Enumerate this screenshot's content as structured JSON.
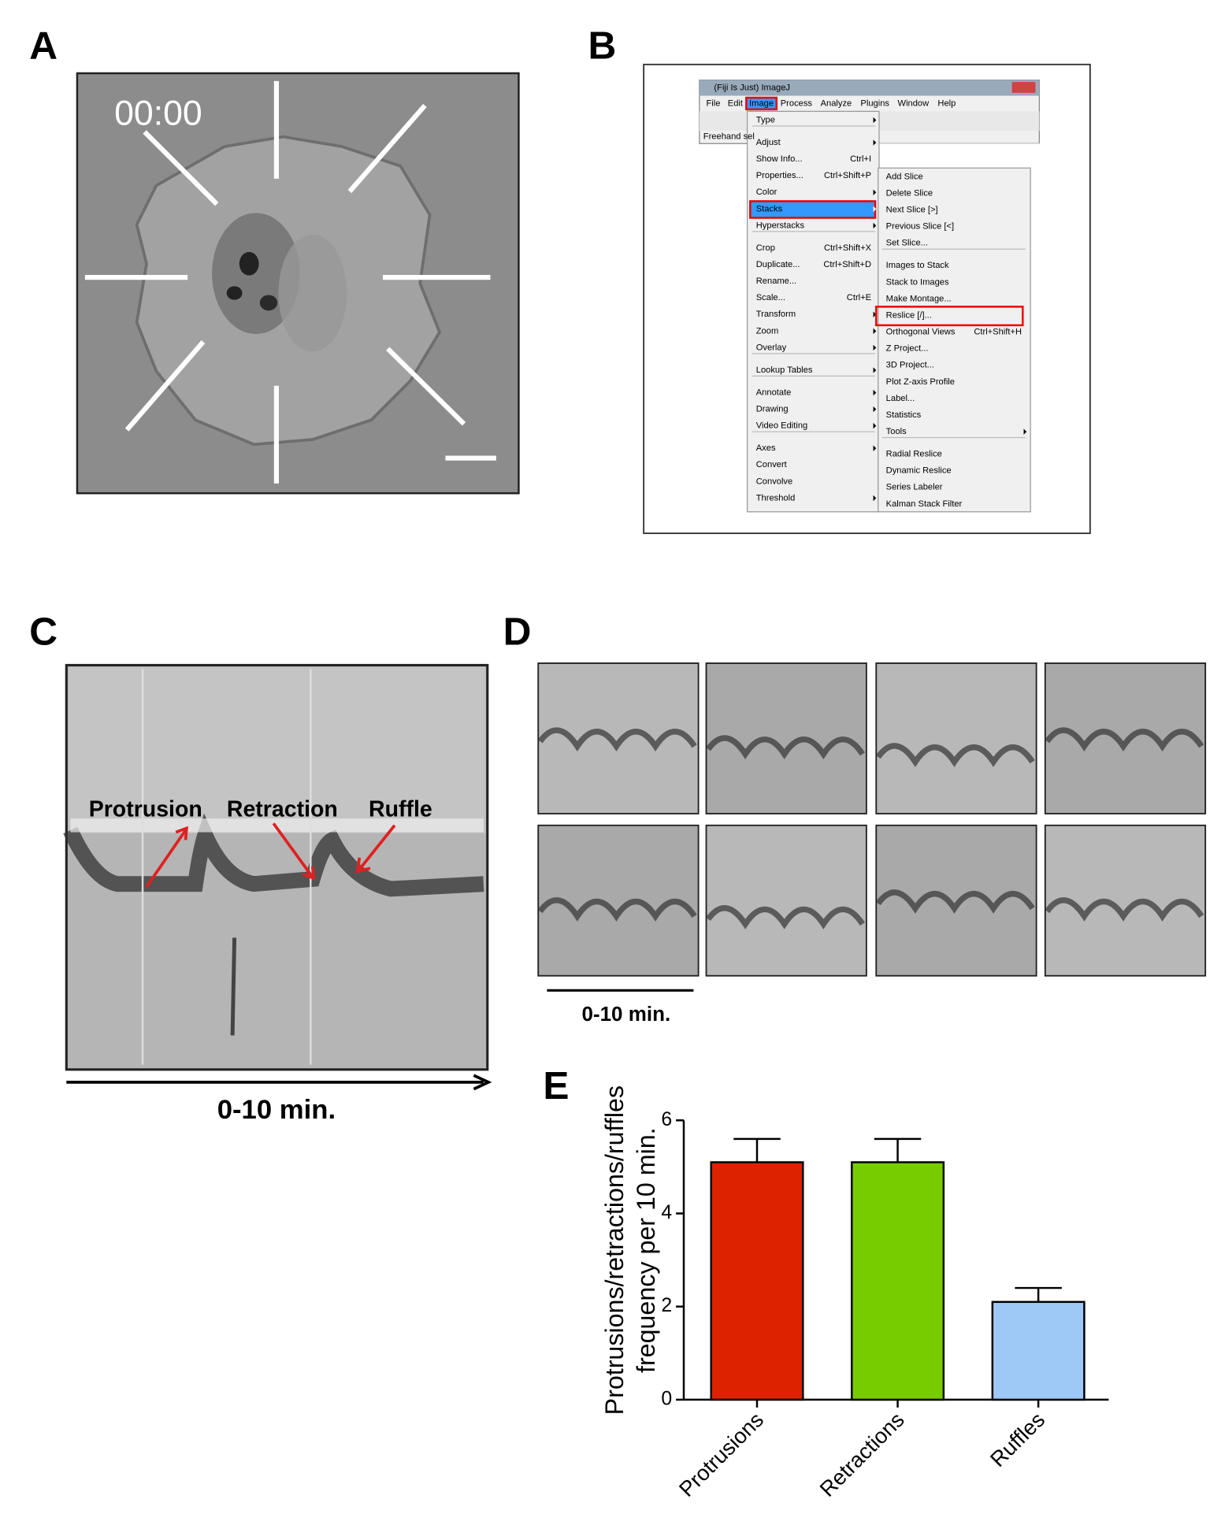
{
  "panel_labels": [
    "A",
    "B",
    "C",
    "D",
    "E"
  ],
  "panel_a": {
    "timestamp": "00:00"
  },
  "panel_b": {
    "window_title": "(Fiji Is Just) ImageJ",
    "menu_bar": [
      "File",
      "Edit",
      "Image",
      "Process",
      "Analyze",
      "Plugins",
      "Window",
      "Help"
    ],
    "status": "Freehand sel",
    "image_menu": [
      [
        {
          "label": "Type",
          "submenu": true
        }
      ],
      [
        {
          "label": "Adjust",
          "submenu": true
        },
        {
          "label": "Show Info...",
          "shortcut": "Ctrl+I"
        },
        {
          "label": "Properties...",
          "shortcut": "Ctrl+Shift+P"
        },
        {
          "label": "Color",
          "submenu": true
        },
        {
          "label": "Stacks",
          "submenu": true
        },
        {
          "label": "Hyperstacks",
          "submenu": true
        }
      ],
      [
        {
          "label": "Crop",
          "shortcut": "Ctrl+Shift+X"
        },
        {
          "label": "Duplicate...",
          "shortcut": "Ctrl+Shift+D"
        },
        {
          "label": "Rename..."
        },
        {
          "label": "Scale...",
          "shortcut": "Ctrl+E"
        },
        {
          "label": "Transform",
          "submenu": true
        },
        {
          "label": "Zoom",
          "submenu": true
        },
        {
          "label": "Overlay",
          "submenu": true
        }
      ],
      [
        {
          "label": "Lookup Tables",
          "submenu": true
        }
      ],
      [
        {
          "label": "Annotate",
          "submenu": true
        },
        {
          "label": "Drawing",
          "submenu": true
        },
        {
          "label": "Video Editing",
          "submenu": true
        }
      ],
      [
        {
          "label": "Axes",
          "submenu": true
        },
        {
          "label": "Convert"
        },
        {
          "label": "Convolve"
        },
        {
          "label": "Threshold",
          "submenu": true
        }
      ]
    ],
    "stacks_menu": [
      [
        {
          "label": "Add Slice"
        },
        {
          "label": "Delete Slice"
        },
        {
          "label": "Next Slice [>]"
        },
        {
          "label": "Previous Slice [<]"
        },
        {
          "label": "Set Slice..."
        }
      ],
      [
        {
          "label": "Images to Stack"
        },
        {
          "label": "Stack to Images"
        },
        {
          "label": "Make Montage..."
        },
        {
          "label": "Reslice [/]..."
        },
        {
          "label": "Orthogonal Views",
          "shortcut": "Ctrl+Shift+H"
        },
        {
          "label": "Z Project..."
        },
        {
          "label": "3D Project..."
        },
        {
          "label": "Plot Z-axis Profile"
        },
        {
          "label": "Label..."
        },
        {
          "label": "Statistics"
        },
        {
          "label": "Tools",
          "submenu": true
        }
      ],
      [
        {
          "label": "Radial Reslice"
        },
        {
          "label": "Dynamic Reslice"
        },
        {
          "label": "Series Labeler"
        },
        {
          "label": "Kalman Stack Filter"
        }
      ]
    ]
  },
  "panel_c": {
    "annotations": [
      "Protrusion",
      "Retraction",
      "Ruffle"
    ],
    "axis_label": "0-10 min."
  },
  "panel_d": {
    "axis_label": "0-10 min."
  },
  "chart_data": {
    "type": "bar",
    "y_label": [
      "Protrusions/retractions/ruffles",
      "frequency per 10 min."
    ],
    "categories": [
      "Protrusions",
      "Retractions",
      "Ruffles"
    ],
    "values": [
      5.1,
      5.1,
      2.1
    ],
    "errors": [
      0.5,
      0.5,
      0.3
    ],
    "colors": [
      "#dd2200",
      "#77cc00",
      "#9ec8f5"
    ],
    "ylim": [
      0,
      6
    ],
    "yticks": [
      0,
      2,
      4,
      6
    ]
  }
}
